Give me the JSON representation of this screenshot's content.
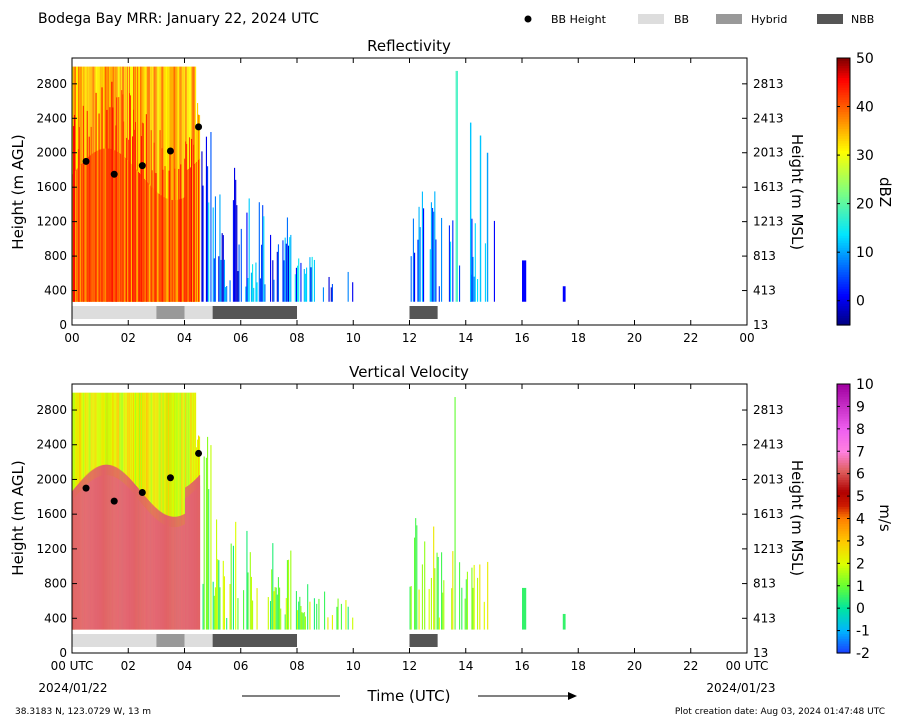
{
  "header": {
    "title": "Bodega Bay MRR:  January 22, 2024 UTC",
    "legend": [
      {
        "label": "BB Height",
        "marker": "dot",
        "color": "#000000"
      },
      {
        "label": "BB",
        "marker": "box",
        "color": "#dddddd"
      },
      {
        "label": "Hybrid",
        "marker": "box",
        "color": "#999999"
      },
      {
        "label": "NBB",
        "marker": "box",
        "color": "#555555"
      }
    ]
  },
  "footer": {
    "location": "38.3183 N, 123.0729 W, 13 m",
    "created": "Plot creation date: Aug 03, 2024 01:47:48 UTC",
    "xlabel": "Time (UTC)",
    "start_date": "2024/01/22",
    "end_date": "2024/01/23"
  },
  "chart_data": [
    {
      "type": "heatmap",
      "title": "Reflectivity",
      "ylabel": "Height (m AGL)",
      "ylabel_right": "Height (m MSL)",
      "xlim": [
        0,
        24
      ],
      "ylim": [
        0,
        3100
      ],
      "xticks": [
        "00",
        "02",
        "04",
        "06",
        "08",
        "10",
        "12",
        "14",
        "16",
        "18",
        "20",
        "22",
        "00"
      ],
      "yticks": [
        0,
        400,
        800,
        1200,
        1600,
        2000,
        2400,
        2800
      ],
      "yticks_right": [
        "13",
        "413",
        "813",
        "1213",
        "1613",
        "2013",
        "2413",
        "2813"
      ],
      "colorbar": {
        "label": "dBZ",
        "min": -5,
        "max": 50,
        "ticks": [
          0,
          10,
          20,
          30,
          40,
          50
        ]
      },
      "bb_height": [
        {
          "x": 0.5,
          "y": 1900
        },
        {
          "x": 1.5,
          "y": 1750
        },
        {
          "x": 2.5,
          "y": 1850
        },
        {
          "x": 3.5,
          "y": 2020
        },
        {
          "x": 4.5,
          "y": 2300
        }
      ],
      "bb_type": [
        {
          "start": 0,
          "end": 3,
          "type": "BB"
        },
        {
          "start": 3,
          "end": 4,
          "type": "Hybrid"
        },
        {
          "start": 4,
          "end": 5,
          "type": "BB"
        },
        {
          "start": 5,
          "end": 8,
          "type": "NBB"
        },
        {
          "start": 12,
          "end": 13,
          "type": "NBB"
        }
      ]
    },
    {
      "type": "heatmap",
      "title": "Vertical Velocity",
      "ylabel": "Height (m AGL)",
      "ylabel_right": "Height (m MSL)",
      "xlim": [
        0,
        24
      ],
      "ylim": [
        0,
        3100
      ],
      "xticks": [
        "00 UTC",
        "02",
        "04",
        "06",
        "08",
        "10",
        "12",
        "14",
        "16",
        "18",
        "20",
        "22",
        "00 UTC"
      ],
      "yticks": [
        0,
        400,
        800,
        1200,
        1600,
        2000,
        2400,
        2800
      ],
      "yticks_right": [
        "13",
        "413",
        "813",
        "1213",
        "1613",
        "2013",
        "2413",
        "2813"
      ],
      "colorbar": {
        "label": "m/s",
        "min": -2,
        "max": 10,
        "ticks": [
          -2,
          -1,
          0,
          1,
          2,
          3,
          4,
          5,
          6,
          7,
          8,
          9,
          10
        ]
      },
      "bb_height": [
        {
          "x": 0.5,
          "y": 1900
        },
        {
          "x": 1.5,
          "y": 1750
        },
        {
          "x": 2.5,
          "y": 1850
        },
        {
          "x": 3.5,
          "y": 2020
        },
        {
          "x": 4.5,
          "y": 2300
        }
      ],
      "bb_type": [
        {
          "start": 0,
          "end": 3,
          "type": "BB"
        },
        {
          "start": 3,
          "end": 4,
          "type": "Hybrid"
        },
        {
          "start": 4,
          "end": 5,
          "type": "BB"
        },
        {
          "start": 5,
          "end": 8,
          "type": "NBB"
        },
        {
          "start": 12,
          "end": 13,
          "type": "NBB"
        }
      ]
    }
  ]
}
